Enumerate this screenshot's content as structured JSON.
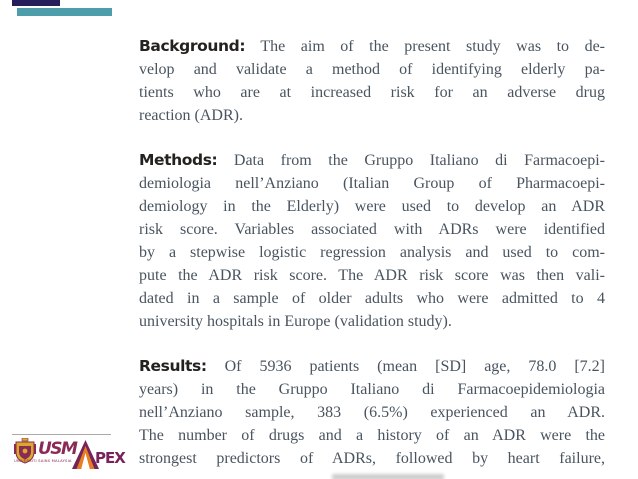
{
  "page": {
    "background": "#ffffff"
  },
  "decorations": {
    "navy_bar_color": "#241e5a",
    "teal_bar_color": "#4e9daa",
    "divider_color": "#aaaaaa",
    "cutoff_fragment_color": "#cccccc"
  },
  "abstract": {
    "heading_color": "#25211f",
    "body_color": "#49545f",
    "sections": [
      {
        "label": "Background:",
        "justify_last": false,
        "lines": [
          "The aim of the present study was to de-",
          "velop and validate a method of identifying elderly pa-",
          "tients who are at increased risk for an adverse drug",
          "reaction (ADR)."
        ]
      },
      {
        "label": "Methods:",
        "justify_last": false,
        "lines": [
          "Data from the Gruppo Italiano di Farmacoepi-",
          "demiologia nell’Anziano (Italian Group of Pharmacoepi-",
          "demiology in the Elderly) were used to develop an ADR",
          "risk score. Variables associated with ADRs were identified",
          "by a stepwise logistic regression analysis and used to com-",
          "pute the ADR risk score. The ADR risk score was then vali-",
          "dated in a sample of older adults who were admitted to 4",
          "university hospitals in Europe (validation study)."
        ]
      },
      {
        "label": "Results:",
        "justify_last": true,
        "lines": [
          "Of 5936 patients (mean [SD] age, 78.0 [7.2]",
          "years) in the Gruppo Italiano di Farmacoepidemiologia",
          "nell’Anziano sample, 383 (6.5%) experienced an ADR.",
          "The number of drugs and a history of an ADR were the",
          "strongest predictors of ADRs, followed by heart failure,"
        ]
      }
    ]
  },
  "footer": {
    "usm_logo": {
      "wordmark": "USM",
      "subtext": "UNIVERSITI SAINS MALAYSIA",
      "maroon": "#8a2a55",
      "gold": "#d9a92a"
    },
    "apex_logo": {
      "full_name": "APEX",
      "wordmark_suffix": "PEX",
      "maroon": "#77225a",
      "orange": "#e87e22"
    }
  }
}
